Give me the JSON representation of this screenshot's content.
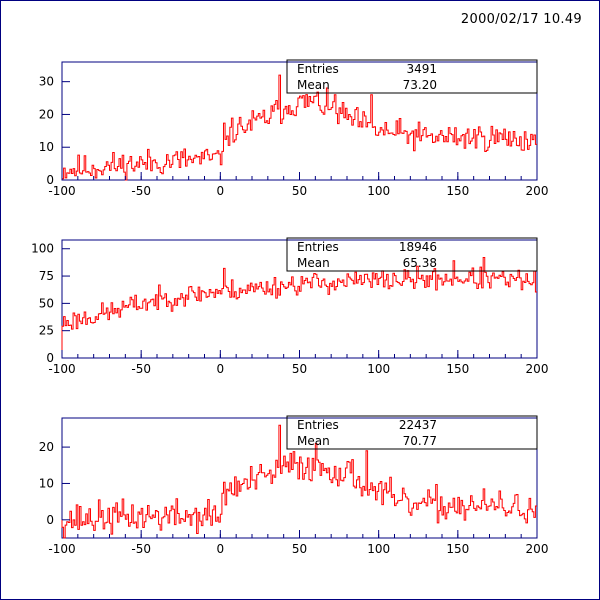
{
  "timestamp": "2000/02/17  10.49",
  "colors": {
    "frame": "#000080",
    "axis": "#000080",
    "hist": "#ff0000",
    "text": "#000000"
  },
  "chart_data": [
    {
      "type": "histogram",
      "xlim": [
        -100,
        200
      ],
      "ylim": [
        0,
        36
      ],
      "x_ticks": [
        -100,
        -50,
        0,
        50,
        100,
        150,
        200
      ],
      "y_ticks": [
        0,
        10,
        20,
        30
      ],
      "bin_width": 1,
      "stats": {
        "entries_label": "Entries",
        "entries": "3491",
        "mean_label": "Mean",
        "mean": "73.20"
      },
      "shape": [
        {
          "x": -100,
          "y": 3
        },
        {
          "x": -75,
          "y": 4
        },
        {
          "x": -50,
          "y": 5
        },
        {
          "x": -25,
          "y": 6
        },
        {
          "x": 0,
          "y": 6.5
        },
        {
          "x": 3,
          "y": 14
        },
        {
          "x": 25,
          "y": 18
        },
        {
          "x": 45,
          "y": 23
        },
        {
          "x": 60,
          "y": 24
        },
        {
          "x": 80,
          "y": 19
        },
        {
          "x": 100,
          "y": 15
        },
        {
          "x": 130,
          "y": 13
        },
        {
          "x": 170,
          "y": 13
        },
        {
          "x": 200,
          "y": 12
        }
      ],
      "noise": 3.2,
      "seed": 11,
      "spikes": [
        {
          "x": 37,
          "y": 32
        },
        {
          "x": 95,
          "y": 26
        },
        {
          "x": 72,
          "y": 26
        }
      ]
    },
    {
      "type": "histogram",
      "xlim": [
        -100,
        200
      ],
      "ylim": [
        0,
        108
      ],
      "x_ticks": [
        -100,
        -50,
        0,
        50,
        100,
        150,
        200
      ],
      "y_ticks": [
        0,
        25,
        50,
        75,
        100
      ],
      "bin_width": 1,
      "stats": {
        "entries_label": "Entries",
        "entries": "18946",
        "mean_label": "Mean",
        "mean": "65.38"
      },
      "shape": [
        {
          "x": -100,
          "y": 32
        },
        {
          "x": -75,
          "y": 40
        },
        {
          "x": -50,
          "y": 50
        },
        {
          "x": -25,
          "y": 57
        },
        {
          "x": 0,
          "y": 61
        },
        {
          "x": 25,
          "y": 64
        },
        {
          "x": 50,
          "y": 68
        },
        {
          "x": 100,
          "y": 71
        },
        {
          "x": 150,
          "y": 73
        },
        {
          "x": 200,
          "y": 70
        }
      ],
      "noise": 7.5,
      "seed": 23,
      "spikes": [
        {
          "x": 166,
          "y": 92
        },
        {
          "x": 147,
          "y": 89
        },
        {
          "x": 2,
          "y": 82
        }
      ]
    },
    {
      "type": "histogram",
      "xlim": [
        -100,
        200
      ],
      "ylim": [
        -5,
        28
      ],
      "x_ticks": [
        -100,
        -50,
        0,
        50,
        100,
        150,
        200
      ],
      "y_ticks": [
        0,
        10,
        20
      ],
      "bin_width": 1,
      "stats": {
        "entries_label": "Entries",
        "entries": "22437",
        "mean_label": "Mean",
        "mean": "70.77"
      },
      "shape": [
        {
          "x": -100,
          "y": 0
        },
        {
          "x": -50,
          "y": 1
        },
        {
          "x": 0,
          "y": 1
        },
        {
          "x": 3,
          "y": 8
        },
        {
          "x": 25,
          "y": 11
        },
        {
          "x": 45,
          "y": 15
        },
        {
          "x": 60,
          "y": 15
        },
        {
          "x": 80,
          "y": 13
        },
        {
          "x": 100,
          "y": 8
        },
        {
          "x": 115,
          "y": 4
        },
        {
          "x": 150,
          "y": 4
        },
        {
          "x": 200,
          "y": 3
        }
      ],
      "noise": 3.4,
      "seed": 37,
      "spikes": [
        {
          "x": 37,
          "y": 26
        },
        {
          "x": 92,
          "y": 19
        },
        {
          "x": 60,
          "y": 21
        }
      ]
    }
  ]
}
